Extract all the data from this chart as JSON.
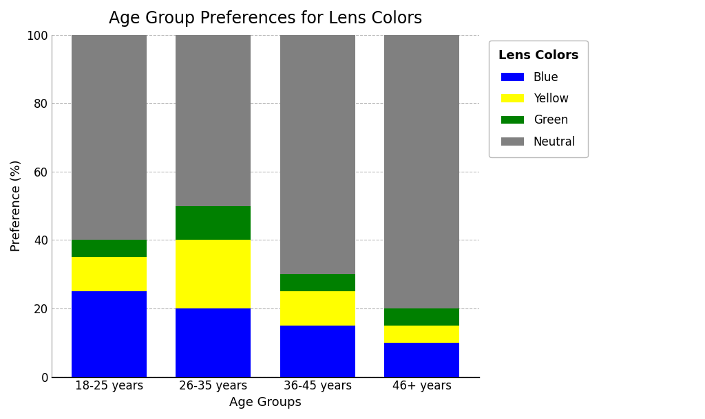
{
  "title": "Age Group Preferences for Lens Colors",
  "xlabel": "Age Groups",
  "ylabel": "Preference (%)",
  "legend_title": "Lens Colors",
  "categories": [
    "18-25 years",
    "26-35 years",
    "36-45 years",
    "46+ years"
  ],
  "series": [
    {
      "label": "Blue",
      "values": [
        25,
        20,
        15,
        10
      ],
      "color": "#0000ff"
    },
    {
      "label": "Yellow",
      "values": [
        10,
        20,
        10,
        5
      ],
      "color": "#ffff00"
    },
    {
      "label": "Green",
      "values": [
        5,
        10,
        5,
        5
      ],
      "color": "#008000"
    },
    {
      "label": "Neutral",
      "values": [
        60,
        50,
        70,
        80
      ],
      "color": "#808080"
    }
  ],
  "ylim": [
    0,
    100
  ],
  "bar_width": 0.72,
  "background_color": "#ffffff",
  "plot_bg_color": "#ffffff",
  "grid_color": "#bbbbbb",
  "title_fontsize": 17,
  "axis_label_fontsize": 13,
  "tick_fontsize": 12,
  "legend_fontsize": 12
}
